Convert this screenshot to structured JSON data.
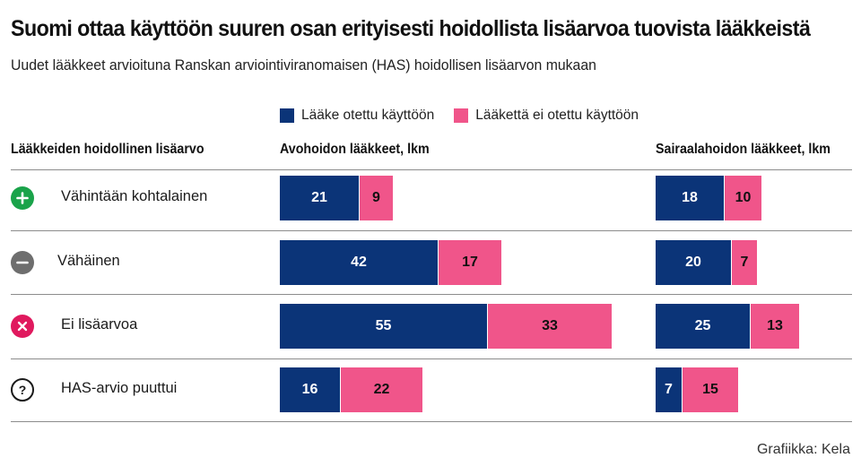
{
  "title": "Suomi ottaa käyttöön suuren osan erityisesti hoidollista lisäarvoa tuovista lääkkeistä",
  "subtitle": "Uudet lääkkeet arvioituna Ranskan arviointiviranomaisen (HAS) hoidollisen lisäarvon mukaan",
  "legend": {
    "adopted": "Lääke otettu käyttöön",
    "not_adopted": "Lääkettä ei otettu käyttöön"
  },
  "columns": {
    "category": "Lääkkeiden hoidollinen lisäarvo",
    "outpatient": "Avohoidon lääkkeet, lkm",
    "hospital": "Sairaalahoidon lääkkeet, lkm"
  },
  "credit": "Grafiikka: Kela",
  "colors": {
    "adopted": "#0b3478",
    "not_adopted": "#f0558a",
    "icon_plus": "#1aa34a",
    "icon_minus": "#6e6e6e",
    "icon_x": "#e0195e",
    "icon_question": "#1a1a1a"
  },
  "chart_data": [
    {
      "type": "bar",
      "orientation": "horizontal",
      "stacked": true,
      "title": "Avohoidon lääkkeet, lkm",
      "categories": [
        "Vähintään kohtalainen",
        "Vähäinen",
        "Ei lisäarvoa",
        "HAS-arvio puuttui"
      ],
      "category_icons": [
        "plus-icon",
        "minus-icon",
        "x-icon",
        "question-icon"
      ],
      "series": [
        {
          "name": "Lääke otettu käyttöön",
          "values": [
            21,
            42,
            55,
            16
          ]
        },
        {
          "name": "Lääkettä ei otettu käyttöön",
          "values": [
            9,
            17,
            33,
            22
          ]
        }
      ],
      "legend": "top",
      "grid": false
    },
    {
      "type": "bar",
      "orientation": "horizontal",
      "stacked": true,
      "title": "Sairaalahoidon lääkkeet, lkm",
      "categories": [
        "Vähintään kohtalainen",
        "Vähäinen",
        "Ei lisäarvoa",
        "HAS-arvio puuttui"
      ],
      "category_icons": [
        "plus-icon",
        "minus-icon",
        "x-icon",
        "question-icon"
      ],
      "series": [
        {
          "name": "Lääke otettu käyttöön",
          "values": [
            18,
            20,
            25,
            7
          ]
        },
        {
          "name": "Lääkettä ei otettu käyttöön",
          "values": [
            10,
            7,
            13,
            15
          ]
        }
      ],
      "legend": "top",
      "grid": false
    }
  ]
}
